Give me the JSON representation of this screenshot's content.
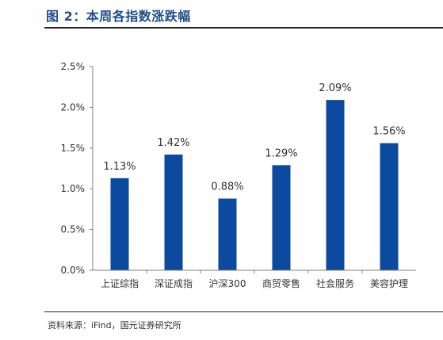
{
  "figure": {
    "title": "图 2：本周各指数涨跌幅",
    "source": "资料来源：iFind，国元证券研究所"
  },
  "colors": {
    "bar": "#0b4a9e",
    "title": "#1f4e8c",
    "axis": "#7f7f7f",
    "text": "#333333"
  },
  "chart_data": {
    "type": "bar",
    "title": "",
    "xlabel": "",
    "ylabel": "",
    "categories": [
      "上证综指",
      "深证成指",
      "沪深300",
      "商贸零售",
      "社会服务",
      "美容护理"
    ],
    "values": [
      1.13,
      1.42,
      0.88,
      1.29,
      2.09,
      1.56
    ],
    "data_labels": [
      "1.13%",
      "1.42%",
      "0.88%",
      "1.29%",
      "2.09%",
      "1.56%"
    ],
    "ylim": [
      0,
      2.5
    ],
    "yticks": [
      0,
      0.5,
      1.0,
      1.5,
      2.0,
      2.5
    ],
    "ytick_labels": [
      "0.0%",
      "0.5%",
      "1.0%",
      "1.5%",
      "2.0%",
      "2.5%"
    ],
    "grid": false,
    "legend": "none"
  }
}
